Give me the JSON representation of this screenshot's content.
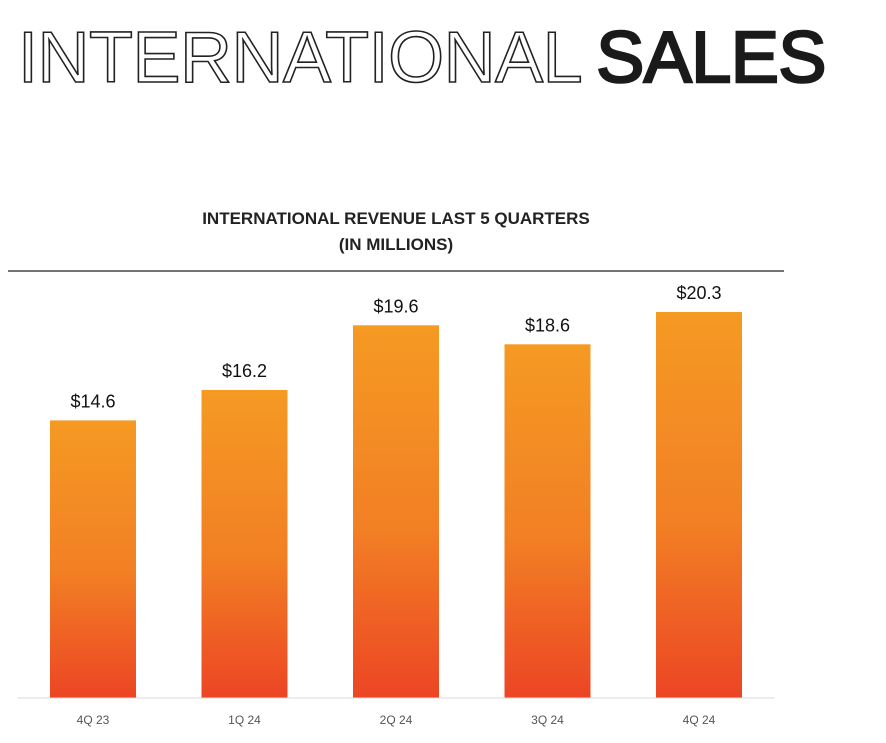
{
  "heading": {
    "outline_text": "INTERNATIONAL",
    "solid_text": "SALES"
  },
  "chart_data": {
    "type": "bar",
    "title_line1": "INTERNATIONAL REVENUE LAST 5 QUARTERS",
    "title_line2": "(IN MILLIONS)",
    "categories": [
      "4Q 23",
      "1Q 24",
      "2Q 24",
      "3Q 24",
      "4Q 24"
    ],
    "values": [
      14.6,
      16.2,
      19.6,
      18.6,
      20.3
    ],
    "data_labels": [
      "$14.6",
      "$16.2",
      "$19.6",
      "$18.6",
      "$20.3"
    ],
    "ylim": [
      0,
      20.3
    ],
    "grid": false,
    "legend": "none",
    "colors": {
      "bar_top": "#f59a23",
      "bar_bottom": "#ec4524",
      "rule": "#222222",
      "baseline": "#d9d9d9"
    }
  }
}
